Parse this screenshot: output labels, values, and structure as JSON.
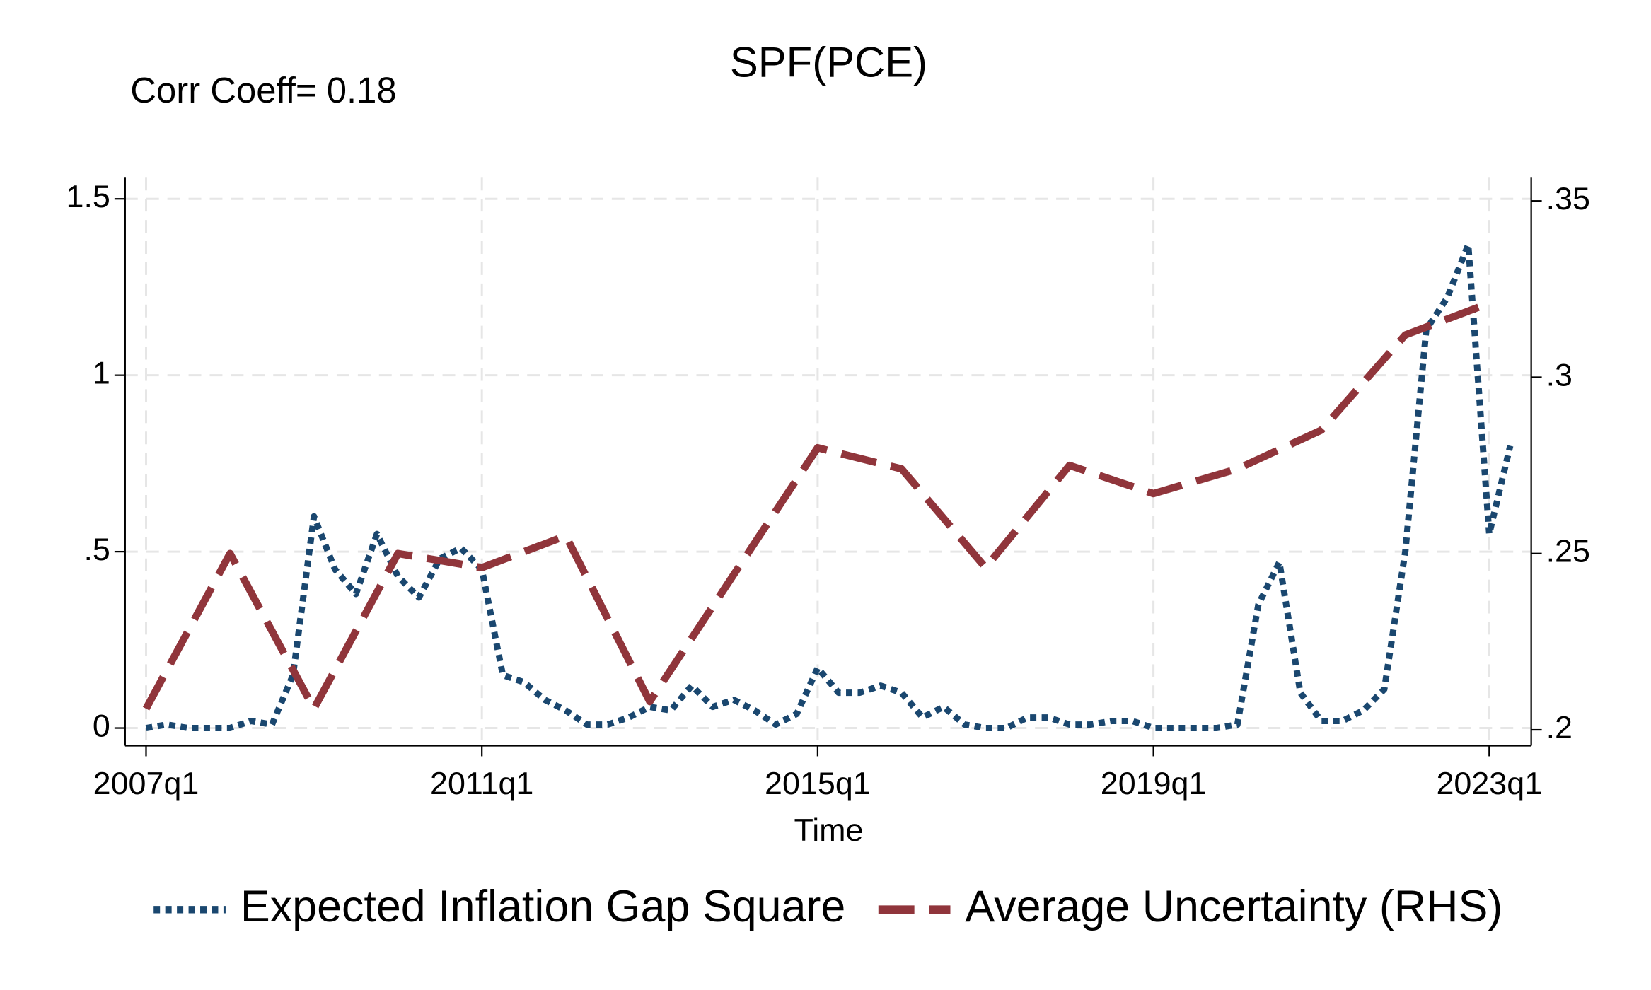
{
  "chart_data": {
    "type": "line",
    "title": "SPF(PCE)",
    "annotation": "Corr Coeff= 0.18",
    "x_label": "Time",
    "xlim": [
      2006.75,
      2023.5
    ],
    "xticks": [
      {
        "value": 2007,
        "label": "2007q1"
      },
      {
        "value": 2011,
        "label": "2011q1"
      },
      {
        "value": 2015,
        "label": "2015q1"
      },
      {
        "value": 2019,
        "label": "2019q1"
      },
      {
        "value": 2023,
        "label": "2023q1"
      }
    ],
    "ylim": [
      -0.05,
      1.56
    ],
    "yticks": [
      0,
      {
        "value": 0.5,
        "label": ".5"
      },
      1,
      1.5
    ],
    "y2lim": [
      0.1955,
      0.3566
    ],
    "y2ticks": [
      {
        "value": 0.2,
        "label": ".2"
      },
      {
        "value": 0.25,
        "label": ".25"
      },
      {
        "value": 0.3,
        "label": ".3"
      },
      {
        "value": 0.35,
        "label": ".35"
      }
    ],
    "grid": true,
    "legend": "bottom",
    "series": [
      {
        "name": "Expected Inflation Gap Square",
        "color": "#1a476f",
        "style": "dotted",
        "x": [
          2007,
          2007.25,
          2007.5,
          2007.75,
          2008,
          2008.25,
          2008.5,
          2008.75,
          2009,
          2009.25,
          2009.5,
          2009.75,
          2010,
          2010.25,
          2010.5,
          2010.75,
          2011,
          2011.25,
          2011.5,
          2011.75,
          2012,
          2012.25,
          2012.5,
          2012.75,
          2013,
          2013.25,
          2013.5,
          2013.75,
          2014,
          2014.25,
          2014.5,
          2014.75,
          2015,
          2015.25,
          2015.5,
          2015.75,
          2016,
          2016.25,
          2016.5,
          2016.75,
          2017,
          2017.25,
          2017.5,
          2017.75,
          2018,
          2018.25,
          2018.5,
          2018.75,
          2019,
          2019.25,
          2019.5,
          2019.75,
          2020,
          2020.25,
          2020.5,
          2020.75,
          2021,
          2021.25,
          2021.5,
          2021.75,
          2022,
          2022.25,
          2022.5,
          2022.75,
          2023,
          2023.25
        ],
        "values": [
          0,
          0.01,
          0,
          0,
          0,
          0.02,
          0.01,
          0.15,
          0.6,
          0.45,
          0.38,
          0.55,
          0.43,
          0.37,
          0.48,
          0.51,
          0.45,
          0.15,
          0.13,
          0.08,
          0.05,
          0.01,
          0.01,
          0.03,
          0.06,
          0.05,
          0.12,
          0.06,
          0.08,
          0.05,
          0.01,
          0.04,
          0.17,
          0.1,
          0.1,
          0.12,
          0.1,
          0.03,
          0.06,
          0.01,
          0,
          0,
          0.03,
          0.03,
          0.01,
          0.01,
          0.02,
          0.02,
          0,
          0,
          0,
          0,
          0.01,
          0.35,
          0.47,
          0.1,
          0.02,
          0.02,
          0.05,
          0.11,
          0.5,
          1.13,
          1.22,
          1.37,
          0.55,
          0.8
        ]
      },
      {
        "name": "Average Uncertainty (RHS)",
        "color": "#90353b",
        "style": "dashed",
        "axis": "y2",
        "x": [
          2007,
          2008,
          2009,
          2010,
          2011,
          2012,
          2013,
          2014,
          2015,
          2016,
          2017,
          2018,
          2019,
          2020,
          2021,
          2022,
          2023
        ],
        "values": [
          0.206,
          0.25,
          0.206,
          0.25,
          0.246,
          0.255,
          0.208,
          0.244,
          0.28,
          0.274,
          0.246,
          0.275,
          0.267,
          0.274,
          0.285,
          0.312,
          0.321
        ]
      }
    ]
  }
}
